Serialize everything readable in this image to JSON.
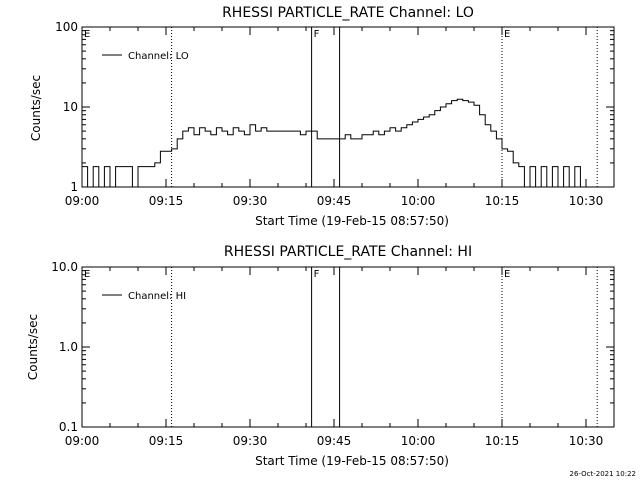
{
  "chart_data": [
    {
      "type": "line",
      "title": "RHESSI PARTICLE_RATE Channel: LO",
      "xlabel": "Start Time (19-Feb-15 08:57:50)",
      "ylabel": "Counts/sec",
      "y_scale": "log",
      "ylim": [
        1,
        100
      ],
      "y_ticks": [
        "1",
        "10",
        "100"
      ],
      "x_range": [
        "09:00",
        "10:35"
      ],
      "x_ticks": [
        "09:00",
        "09:15",
        "09:30",
        "09:45",
        "10:00",
        "10:15",
        "10:30"
      ],
      "legend": "Channel: LO",
      "legend_position": "top-left",
      "markers": [
        {
          "label": "E",
          "time": "09:00",
          "style": "dotted"
        },
        {
          "label": "",
          "time": "09:16",
          "style": "dotted"
        },
        {
          "label": "F",
          "time": "09:41",
          "style": "solid"
        },
        {
          "label": "",
          "time": "09:46",
          "style": "solid"
        },
        {
          "label": "E",
          "time": "10:15",
          "style": "dotted"
        },
        {
          "label": "",
          "time": "10:32",
          "style": "dotted"
        }
      ],
      "series": [
        {
          "x": [
            "09:00",
            "09:01",
            "09:02",
            "09:03",
            "09:04",
            "09:05",
            "09:06",
            "09:07",
            "09:08",
            "09:09",
            "09:10",
            "09:11",
            "09:12",
            "09:13",
            "09:14",
            "09:15",
            "09:16",
            "09:17",
            "09:18",
            "09:19",
            "09:20",
            "09:21",
            "09:22",
            "09:23",
            "09:24",
            "09:25",
            "09:26",
            "09:27",
            "09:28",
            "09:29",
            "09:30",
            "09:31",
            "09:32",
            "09:33",
            "09:34",
            "09:35",
            "09:36",
            "09:37",
            "09:38",
            "09:39",
            "09:40",
            "09:41",
            "09:42",
            "09:43",
            "09:44",
            "09:45",
            "09:46",
            "09:47",
            "09:48",
            "09:49",
            "09:50",
            "09:51",
            "09:52",
            "09:53",
            "09:54",
            "09:55",
            "09:56",
            "09:57",
            "09:58",
            "09:59",
            "10:00",
            "10:01",
            "10:02",
            "10:03",
            "10:04",
            "10:05",
            "10:06",
            "10:07",
            "10:08",
            "10:09",
            "10:10",
            "10:11",
            "10:12",
            "10:13",
            "10:14",
            "10:15",
            "10:16",
            "10:17",
            "10:18",
            "10:19",
            "10:20",
            "10:21",
            "10:22",
            "10:23",
            "10:24",
            "10:25",
            "10:26",
            "10:27",
            "10:28",
            "10:29",
            "10:30",
            "10:31"
          ],
          "values": [
            1.8,
            1.0,
            1.8,
            1.0,
            1.8,
            1.0,
            1.8,
            1.8,
            1.8,
            1.0,
            1.8,
            1.8,
            1.8,
            2.0,
            2.8,
            2.8,
            3.0,
            4.0,
            5.0,
            5.5,
            4.5,
            5.5,
            5.0,
            4.5,
            5.5,
            5.0,
            4.5,
            5.5,
            5.0,
            4.5,
            6.0,
            5.0,
            5.5,
            5.0,
            5.0,
            5.0,
            5.0,
            5.0,
            5.0,
            4.5,
            5.0,
            5.0,
            4.0,
            4.0,
            4.0,
            4.0,
            4.0,
            4.5,
            4.0,
            4.0,
            4.5,
            4.5,
            5.0,
            4.5,
            5.0,
            5.5,
            5.0,
            5.5,
            6.0,
            6.5,
            7.0,
            7.5,
            8.0,
            9.0,
            10.0,
            11.0,
            12.0,
            12.5,
            12.0,
            11.5,
            10.5,
            8.0,
            6.0,
            5.0,
            4.0,
            3.0,
            2.8,
            2.0,
            1.8,
            1.0,
            1.8,
            1.0,
            1.8,
            1.0,
            1.8,
            1.0,
            1.8,
            1.0,
            1.8,
            1.0,
            1.0,
            1.0
          ]
        }
      ]
    },
    {
      "type": "line",
      "title": "RHESSI PARTICLE_RATE Channel: HI",
      "xlabel": "Start Time (19-Feb-15 08:57:50)",
      "ylabel": "Counts/sec",
      "y_scale": "log",
      "ylim": [
        0.1,
        10.0
      ],
      "y_ticks": [
        "0.1",
        "1.0",
        "10.0"
      ],
      "x_range": [
        "09:00",
        "10:35"
      ],
      "x_ticks": [
        "09:00",
        "09:15",
        "09:30",
        "09:45",
        "10:00",
        "10:15",
        "10:30"
      ],
      "legend": "Channel: HI",
      "legend_position": "top-left",
      "markers": [
        {
          "label": "E",
          "time": "09:00",
          "style": "dotted"
        },
        {
          "label": "",
          "time": "09:16",
          "style": "dotted"
        },
        {
          "label": "F",
          "time": "09:41",
          "style": "solid"
        },
        {
          "label": "",
          "time": "09:46",
          "style": "solid"
        },
        {
          "label": "E",
          "time": "10:15",
          "style": "dotted"
        },
        {
          "label": "",
          "time": "10:32",
          "style": "dotted"
        }
      ],
      "series": []
    }
  ],
  "footer": {
    "timestamp": "26-Oct-2021 10:22"
  }
}
